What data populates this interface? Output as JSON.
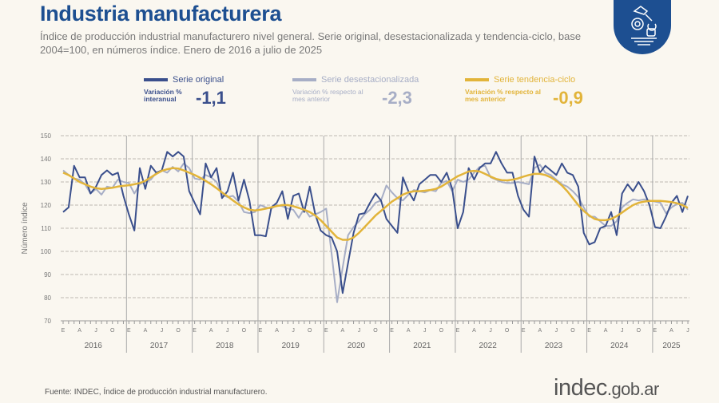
{
  "header": {
    "title": "Industria manufacturera",
    "subtitle": "Índice de producción industrial manufacturero nivel general. Serie original, desestacionalizada y tendencia-ciclo, base 2004=100, en números índice. Enero de 2016 a julio de 2025"
  },
  "legend": [
    {
      "name": "Serie original",
      "color": "#3a4f8c",
      "var_label": "Variación % interanual",
      "value": "-1,1"
    },
    {
      "name": "Serie desestacionalizada",
      "color": "#a7aec6",
      "var_label": "Variación % respecto al mes anterior",
      "value": "-2,3"
    },
    {
      "name": "Serie tendencia-ciclo",
      "color": "#e2b43a",
      "var_label": "Variación % respecto al mes anterior",
      "value": "-0,9"
    }
  ],
  "chart_data": {
    "type": "line",
    "ylabel": "Número índice",
    "ylim": [
      70,
      150
    ],
    "yticks": [
      70,
      80,
      90,
      100,
      110,
      120,
      130,
      140,
      150
    ],
    "grid": true,
    "years": [
      "2016",
      "2017",
      "2018",
      "2019",
      "2020",
      "2021",
      "2022",
      "2023",
      "2024",
      "2025"
    ],
    "month_labels": [
      "E",
      "A",
      "J",
      "O"
    ],
    "series": [
      {
        "name": "Serie original",
        "values": [
          117,
          119,
          137,
          132,
          132,
          125,
          128,
          133,
          135,
          133,
          134,
          124,
          116,
          109,
          136,
          127,
          137,
          134,
          135,
          143,
          141,
          143,
          141,
          126,
          121,
          116,
          138,
          132,
          136,
          123,
          126,
          134,
          122,
          131,
          122,
          107,
          107,
          106.5,
          119,
          121,
          126,
          114,
          124,
          125,
          117,
          128,
          116,
          109,
          107,
          106,
          100,
          82,
          95,
          108,
          116,
          116.5,
          121,
          125,
          122,
          114,
          111,
          108,
          132,
          126,
          122,
          129,
          131,
          133,
          133,
          130,
          134,
          127,
          110,
          117,
          136,
          131,
          136,
          138,
          138,
          143,
          138,
          134,
          134,
          124,
          118,
          115,
          141,
          134,
          137,
          135,
          133,
          138,
          134,
          133,
          128,
          108,
          103,
          104,
          110,
          111,
          117,
          107,
          125,
          129,
          126,
          130,
          126,
          120,
          110.5,
          110,
          115,
          121,
          124,
          117,
          124
        ]
      },
      {
        "name": "Serie desestacionalizada",
        "values": [
          135,
          133,
          131.5,
          131,
          129,
          125,
          127,
          124.5,
          128,
          127.5,
          131,
          130,
          129.5,
          125,
          129,
          130,
          131,
          134,
          135,
          134,
          136.5,
          134.5,
          138,
          136,
          131.5,
          131,
          133,
          132,
          130,
          124.5,
          123.5,
          124,
          121.5,
          117,
          116.5,
          117,
          120,
          119,
          118.5,
          120,
          119.5,
          118.5,
          118,
          114.5,
          118.5,
          115,
          116,
          117,
          118.5,
          99,
          78,
          93,
          107,
          110.5,
          113,
          116,
          118,
          121,
          122,
          128.5,
          125.5,
          123,
          122,
          124.5,
          126.5,
          126,
          125.5,
          126.5,
          126,
          129.5,
          130.5,
          126,
          131,
          130,
          131,
          134,
          136.5,
          137,
          132,
          131,
          130,
          129.5,
          129.5,
          130,
          129.5,
          129,
          136,
          137.5,
          134,
          133,
          131,
          129,
          128,
          126,
          123.5,
          119,
          115,
          115,
          113,
          111,
          111,
          113,
          119,
          121,
          122.5,
          122,
          122.5,
          122,
          121.5,
          121,
          116.5,
          119,
          120.5,
          121,
          118
        ]
      },
      {
        "name": "Serie tendencia-ciclo",
        "values": [
          134,
          133,
          131.5,
          130,
          129,
          128,
          127.3,
          127,
          127.2,
          127.5,
          128,
          128.3,
          128.6,
          129,
          129.5,
          130.5,
          132,
          133.5,
          134.8,
          135.5,
          136,
          135.8,
          135,
          134,
          133,
          131.8,
          130.5,
          129,
          127.3,
          125.5,
          123.8,
          122,
          120.3,
          119,
          118,
          117.7,
          118,
          118.5,
          119,
          119.6,
          120,
          120,
          119.5,
          118.8,
          118,
          117,
          115.5,
          113.5,
          111,
          108.5,
          106,
          105,
          105,
          106,
          108,
          110.5,
          113,
          115.5,
          117.5,
          119.5,
          121.5,
          123,
          124.5,
          125.5,
          126,
          126,
          126.2,
          126.5,
          127,
          128,
          129.5,
          131,
          132.5,
          133.5,
          134.5,
          134.8,
          134.5,
          133.5,
          132.3,
          131.3,
          130.8,
          130.7,
          131,
          131.5,
          132.3,
          133,
          133.5,
          133.5,
          133,
          132,
          130.5,
          128.5,
          126,
          123,
          120,
          117.5,
          115.5,
          114,
          113.5,
          113.5,
          114,
          115.2,
          116.8,
          118.5,
          120,
          121,
          121.5,
          121.8,
          121.8,
          121.8,
          121.6,
          121.3,
          120.8,
          120,
          118.8
        ]
      }
    ]
  },
  "footer": {
    "source": "Fuente: INDEC, Índice de producción industrial manufacturero.",
    "brand_main": "indec",
    "brand_suffix": ".gob.ar"
  }
}
